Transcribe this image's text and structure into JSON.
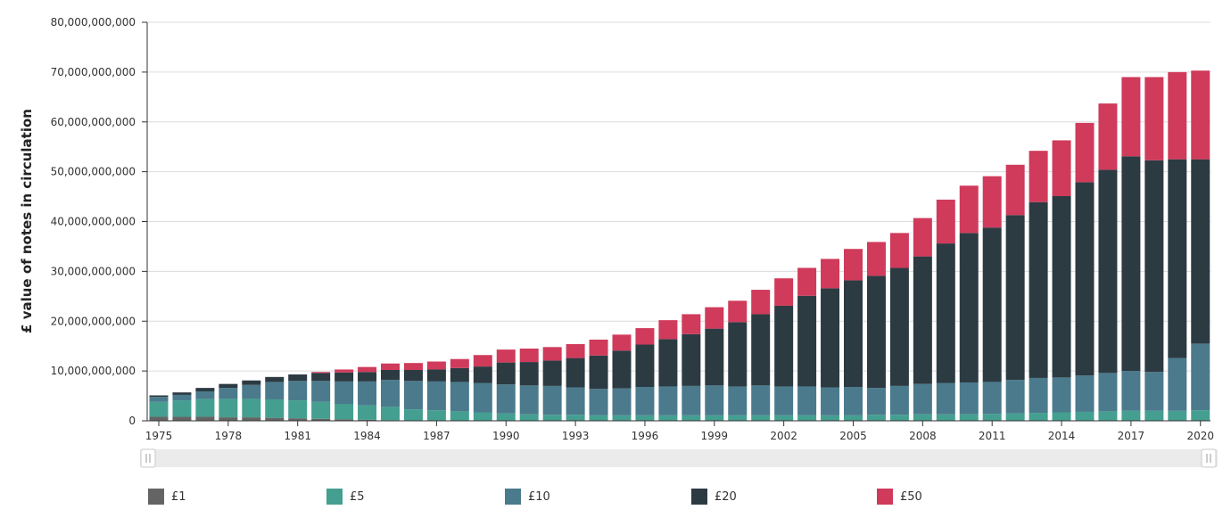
{
  "chart_data": {
    "type": "bar",
    "stacked": true,
    "title": "",
    "xlabel": "",
    "ylabel": "£ value of notes in circulation",
    "ylim": [
      0,
      80000000000
    ],
    "yticks": [
      "0",
      "10,000,000,000",
      "20,000,000,000",
      "30,000,000,000",
      "40,000,000,000",
      "50,000,000,000",
      "60,000,000,000",
      "70,000,000,000",
      "80,000,000,000"
    ],
    "ytick_values": [
      0,
      10000000000,
      20000000000,
      30000000000,
      40000000000,
      50000000000,
      60000000000,
      70000000000,
      80000000000
    ],
    "grid": true,
    "legend_position": "bottom",
    "x_tick_labels": [
      "1975",
      "1978",
      "1981",
      "1984",
      "1987",
      "1990",
      "1993",
      "1996",
      "1999",
      "2002",
      "2005",
      "2008",
      "2011",
      "2014",
      "2017",
      "2020"
    ],
    "categories": [
      "1975",
      "1976",
      "1977",
      "1978",
      "1979",
      "1980",
      "1981",
      "1982",
      "1983",
      "1984",
      "1985",
      "1986",
      "1987",
      "1988",
      "1989",
      "1990",
      "1991",
      "1992",
      "1993",
      "1994",
      "1995",
      "1996",
      "1997",
      "1998",
      "1999",
      "2000",
      "2001",
      "2002",
      "2003",
      "2004",
      "2005",
      "2006",
      "2007",
      "2008",
      "2009",
      "2010",
      "2011",
      "2012",
      "2013",
      "2014",
      "2015",
      "2016",
      "2017",
      "2018",
      "2019",
      "2020"
    ],
    "series": [
      {
        "name": "£1",
        "color": "#646464",
        "values": [
          800000000,
          800000000,
          800000000,
          700000000,
          700000000,
          600000000,
          500000000,
          400000000,
          300000000,
          200000000,
          100000000,
          0,
          0,
          0,
          0,
          0,
          0,
          0,
          0,
          0,
          0,
          0,
          0,
          0,
          0,
          0,
          0,
          0,
          0,
          0,
          0,
          0,
          0,
          0,
          0,
          0,
          0,
          0,
          0,
          0,
          0,
          0,
          0,
          0,
          0,
          0
        ]
      },
      {
        "name": "£5",
        "color": "#449f90",
        "values": [
          3000000000,
          3300000000,
          3600000000,
          3700000000,
          3700000000,
          3700000000,
          3600000000,
          3400000000,
          3100000000,
          2900000000,
          2700000000,
          2300000000,
          2100000000,
          1900000000,
          1700000000,
          1500000000,
          1300000000,
          1200000000,
          1200000000,
          1100000000,
          1100000000,
          1100000000,
          1100000000,
          1100000000,
          1100000000,
          1100000000,
          1100000000,
          1100000000,
          1100000000,
          1100000000,
          1100000000,
          1200000000,
          1200000000,
          1300000000,
          1300000000,
          1300000000,
          1400000000,
          1500000000,
          1600000000,
          1700000000,
          1800000000,
          1900000000,
          2000000000,
          2000000000,
          2000000000,
          2100000000
        ]
      },
      {
        "name": "£10",
        "color": "#4a7a8c",
        "values": [
          1000000000,
          1100000000,
          1500000000,
          2200000000,
          2800000000,
          3500000000,
          3900000000,
          4200000000,
          4500000000,
          4800000000,
          5400000000,
          5700000000,
          5800000000,
          5900000000,
          5900000000,
          5800000000,
          5800000000,
          5800000000,
          5500000000,
          5300000000,
          5400000000,
          5700000000,
          5800000000,
          5900000000,
          6000000000,
          5800000000,
          6000000000,
          5800000000,
          5800000000,
          5600000000,
          5700000000,
          5400000000,
          5800000000,
          6100000000,
          6300000000,
          6400000000,
          6400000000,
          6700000000,
          7000000000,
          7000000000,
          7300000000,
          7700000000,
          8000000000,
          7800000000,
          10600000000,
          13400000000
        ]
      },
      {
        "name": "£20",
        "color": "#2c3a42",
        "values": [
          300000000,
          500000000,
          700000000,
          800000000,
          900000000,
          1000000000,
          1300000000,
          1600000000,
          1800000000,
          1900000000,
          2000000000,
          2200000000,
          2400000000,
          2800000000,
          3300000000,
          4400000000,
          4700000000,
          5100000000,
          5900000000,
          6700000000,
          7600000000,
          8500000000,
          9500000000,
          10400000000,
          11400000000,
          12900000000,
          14300000000,
          16200000000,
          18200000000,
          19900000000,
          21400000000,
          22500000000,
          23700000000,
          25600000000,
          28000000000,
          30000000000,
          31000000000,
          33100000000,
          35300000000,
          36400000000,
          38800000000,
          40800000000,
          43100000000,
          42500000000,
          39900000000,
          37000000000
        ]
      },
      {
        "name": "£50",
        "color": "#d03a5b",
        "values": [
          0,
          0,
          0,
          0,
          0,
          0,
          0,
          200000000,
          600000000,
          1000000000,
          1300000000,
          1400000000,
          1600000000,
          1800000000,
          2300000000,
          2600000000,
          2700000000,
          2700000000,
          2800000000,
          3200000000,
          3200000000,
          3300000000,
          3800000000,
          4000000000,
          4300000000,
          4300000000,
          4900000000,
          5500000000,
          5600000000,
          5900000000,
          6300000000,
          6800000000,
          7000000000,
          7700000000,
          8800000000,
          9500000000,
          10300000000,
          10100000000,
          10300000000,
          11200000000,
          11900000000,
          13300000000,
          15900000000,
          16700000000,
          17500000000,
          17800000000
        ]
      }
    ]
  }
}
